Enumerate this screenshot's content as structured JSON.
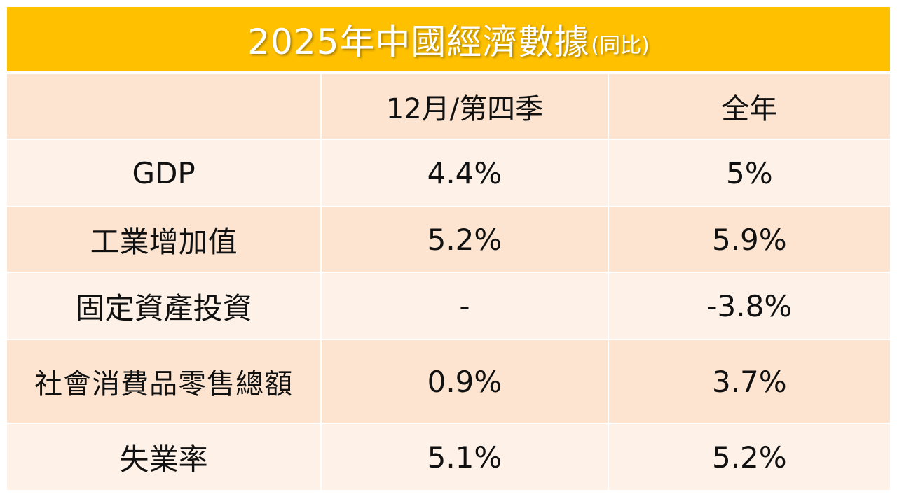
{
  "title": {
    "main": "2025年中國經濟數據",
    "sub": "(同比)"
  },
  "columns": [
    "",
    "12月/第四季",
    "全年"
  ],
  "rows": [
    {
      "label": "GDP",
      "q4": "4.4%",
      "year": "5%"
    },
    {
      "label": "工業增加值",
      "q4": "5.2%",
      "year": "5.9%"
    },
    {
      "label": "固定資產投資",
      "q4": "-",
      "year": "-3.8%"
    },
    {
      "label": "社會消費品零售總額",
      "q4": "0.9%",
      "year": "3.7%"
    },
    {
      "label": "失業率",
      "q4": "5.1%",
      "year": "5.2%"
    }
  ],
  "colors": {
    "title_bg": "#ffc000",
    "row_dark": "#fce4d0",
    "row_light": "#fef2e8"
  }
}
